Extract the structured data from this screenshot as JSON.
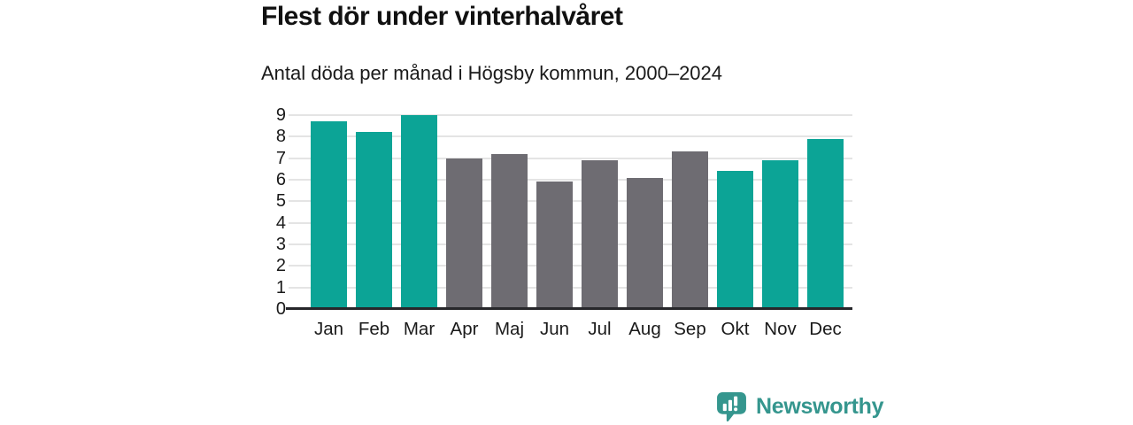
{
  "header": {
    "title": "Flest dör under vinterhalvåret",
    "subtitle": "Antal döda per månad i Högsby kommun, 2000–2024"
  },
  "chart_data": {
    "type": "bar",
    "title": "Flest dör under vinterhalvåret",
    "subtitle": "Antal döda per månad i Högsby kommun, 2000–2024",
    "categories": [
      "Jan",
      "Feb",
      "Mar",
      "Apr",
      "Maj",
      "Jun",
      "Jul",
      "Aug",
      "Sep",
      "Okt",
      "Nov",
      "Dec"
    ],
    "values": [
      8.7,
      8.2,
      9.0,
      7.0,
      7.2,
      5.9,
      6.9,
      6.1,
      7.3,
      6.4,
      6.9,
      7.9
    ],
    "highlighted": [
      true,
      true,
      true,
      false,
      false,
      false,
      false,
      false,
      false,
      true,
      true,
      true
    ],
    "xlabel": "",
    "ylabel": "",
    "ylim": [
      0,
      9
    ],
    "yticks": [
      0,
      1,
      2,
      3,
      4,
      5,
      6,
      7,
      8,
      9
    ],
    "grid": "horizontal",
    "legend": "none",
    "colors": {
      "highlight_bar": "#0ca496",
      "base_bar": "#6e6c72",
      "gridline": "#e4e4e4",
      "axis_line": "#27272b",
      "text": "#1a1a1a"
    }
  },
  "footer": {
    "brand": "Newsworthy",
    "brand_color": "#35968e",
    "logo_icon": "bar-chart-speech-bubble-icon"
  }
}
